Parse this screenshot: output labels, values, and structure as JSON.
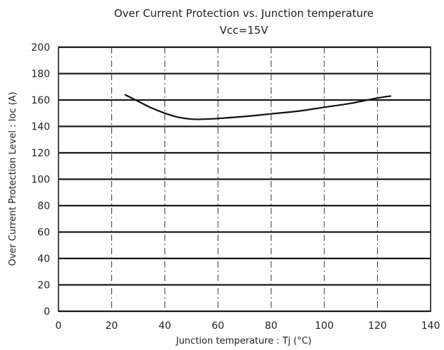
{
  "chart_data": {
    "type": "line",
    "title": "Over Current Protection vs. Junction temperature",
    "subtitle": "Vcc=15V",
    "xlabel": "Junction temperature : Tj (°C)",
    "ylabel": "Over Current Protection Level : Ioc (A)",
    "xlim": [
      0,
      140
    ],
    "ylim": [
      0,
      200
    ],
    "x_ticks": [
      0,
      20,
      40,
      60,
      80,
      100,
      120,
      140
    ],
    "y_ticks": [
      0,
      20,
      40,
      60,
      80,
      100,
      120,
      140,
      160,
      180,
      200
    ],
    "grid": true,
    "series": [
      {
        "x": [
          25,
          30,
          35,
          40,
          45,
          50,
          55,
          60,
          70,
          80,
          90,
          100,
          110,
          120,
          125
        ],
        "values": [
          164,
          159,
          154,
          150,
          147,
          145.5,
          145.5,
          146,
          147.5,
          149.5,
          151.5,
          154.5,
          157.5,
          161.5,
          163
        ]
      }
    ]
  }
}
